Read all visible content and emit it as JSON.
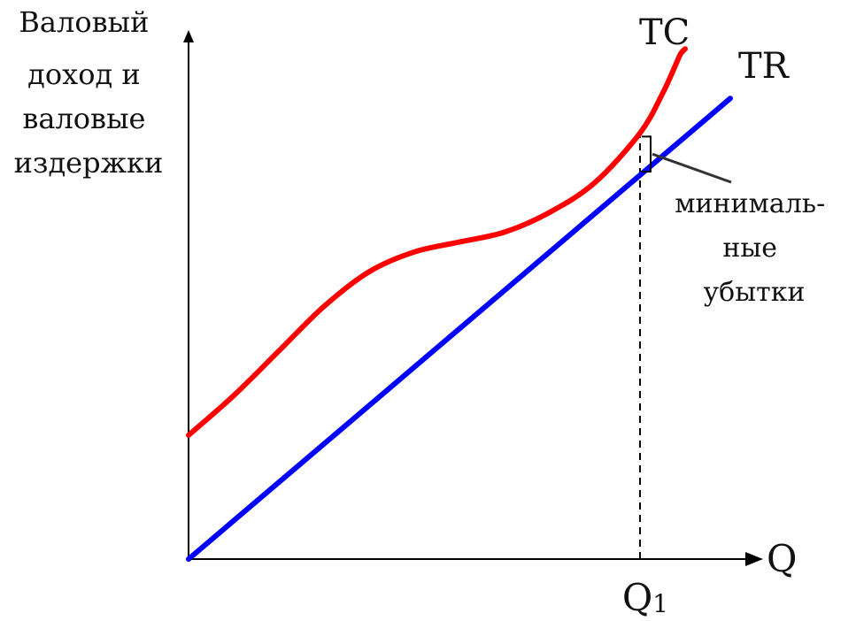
{
  "chart_data": {
    "type": "line",
    "ylabel_lines": [
      "Валовый",
      "доход и",
      "валовые",
      "издержки"
    ],
    "xlabel": "Q",
    "marker": {
      "label_main": "Q",
      "label_sub": "1",
      "x": 1.0
    },
    "annotation_lines": [
      "минималь-",
      "ные",
      "убытки"
    ],
    "xlim": [
      0,
      1.25
    ],
    "ylim": [
      0,
      1.0
    ],
    "series": [
      {
        "name": "TC",
        "color": "#ff0000",
        "x": [
          0.0,
          0.1,
          0.2,
          0.3,
          0.4,
          0.5,
          0.6,
          0.7,
          0.8,
          0.9,
          1.0,
          1.05,
          1.08,
          1.09,
          1.1
        ],
        "y": [
          0.25,
          0.33,
          0.42,
          0.51,
          0.58,
          0.62,
          0.64,
          0.66,
          0.7,
          0.76,
          0.86,
          0.94,
          1.0,
          1.02,
          1.03
        ]
      },
      {
        "name": "TR",
        "color": "#0000ff",
        "x": [
          0.0,
          1.2
        ],
        "y": [
          0.0,
          0.93
        ]
      }
    ]
  }
}
